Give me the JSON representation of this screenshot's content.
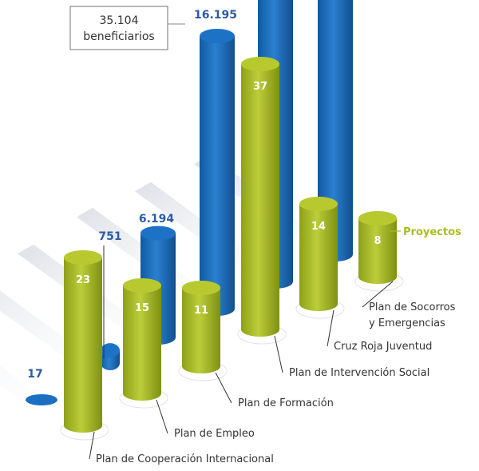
{
  "chart_data": {
    "type": "bar",
    "categories": [
      "Plan de Cooperación Internacional",
      "Plan de Empleo",
      "Plan de Formación",
      "Plan de Intervención Social",
      "Cruz Roja Juventud",
      "Plan de Socorros y Emergencias"
    ],
    "series": [
      {
        "name": "beneficiarios",
        "values": [
          17,
          751,
          6194,
          16195,
          null,
          null
        ],
        "labels": [
          "17",
          "751",
          "6.194",
          "16.195",
          "",
          ""
        ]
      },
      {
        "name": "Proyectos",
        "values": [
          23,
          15,
          11,
          37,
          14,
          8
        ],
        "labels": [
          "23",
          "15",
          "11",
          "37",
          "14",
          "8"
        ]
      }
    ],
    "annotation": "35.104\nbeneficiarios",
    "annotation_lines": [
      "35.104",
      "beneficiarios"
    ],
    "legend_label": "Proyectos",
    "colors": {
      "blue": "#1a6fc3",
      "blue_dark": "#145ea6",
      "green": "#a9bc23",
      "green_dark": "#8a9c14",
      "shadow": "#e6e9ee",
      "text": "#333333",
      "label_blue": "#2c5ba8",
      "label_green": "#a9bc23"
    }
  }
}
